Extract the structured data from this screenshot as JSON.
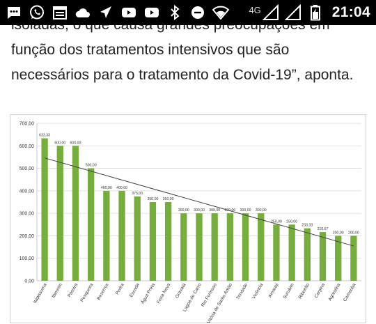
{
  "status_bar": {
    "network": "4G",
    "time": "21:04",
    "icons_left": [
      "message-icon",
      "whatsapp-icon",
      "calendar-icon",
      "cloud-icon",
      "send-icon",
      "youtube-icon",
      "youtube-icon",
      "bluetooth-icon",
      "do-not-disturb-icon",
      "wifi-icon"
    ],
    "icons_right": [
      "signal-icon",
      "signal-icon",
      "battery-icon"
    ]
  },
  "article": {
    "line_1": "isoladas, o que causa grandes preocupações em",
    "line_2": "função dos tratamentos intensivos que são",
    "line_3": "necessários para o tratamento da Covid-19”, aponta."
  },
  "chart_data": {
    "type": "bar",
    "title": "",
    "xlabel": "",
    "ylabel": "",
    "ylim": [
      0,
      700
    ],
    "y_ticks": [
      "0,00",
      "100,00",
      "200,00",
      "300,00",
      "400,00",
      "500,00",
      "600,00",
      "700,00"
    ],
    "grid": true,
    "trendline": true,
    "bar_color": "#77ad3f",
    "categories": [
      "Itapissuma",
      "Ibimirim",
      "Passira",
      "Pesqueira",
      "Bezerros",
      "Pedra",
      "Escada",
      "Água Preta",
      "Feira Nova",
      "Gravatá",
      "Lagoa do Carro",
      "Rio Formoso",
      "Vitória de Santo Antão",
      "Trindade",
      "Vicência",
      "Amaraji",
      "Surubim",
      "Ribeirão",
      "Carpina",
      "Agrestina",
      "Carnaúba"
    ],
    "values": [
      633.33,
      600,
      600,
      500,
      400,
      400,
      375,
      350,
      350,
      300,
      300,
      300,
      300,
      300,
      300,
      250,
      250,
      233.33,
      216.67,
      200,
      200
    ],
    "value_labels": [
      "633,33",
      "600,00",
      "600,00",
      "500,00",
      "400,00",
      "400,00",
      "375,00",
      "350,00",
      "350,00",
      "300,00",
      "300,00",
      "300,00",
      "300,00",
      "300,00",
      "300,00",
      "250,00",
      "250,00",
      "233,33",
      "216,67",
      "200,00",
      "200,00"
    ]
  }
}
